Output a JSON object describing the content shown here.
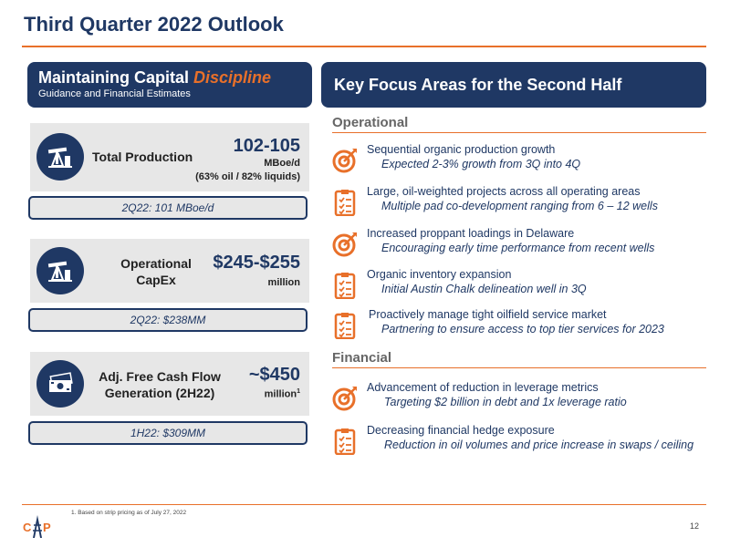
{
  "title": "Third Quarter 2022 Outlook",
  "left": {
    "header_main": "Maintaining Capital ",
    "header_accent": "Discipline",
    "header_sub": "Guidance and Financial Estimates",
    "cards": [
      {
        "icon": "oil-pump-icon",
        "label": "Total Production",
        "value": "102-105",
        "unit": "MBoe/d",
        "sub": "(63% oil / 82% liquids)",
        "pill": "2Q22: 101 MBoe/d"
      },
      {
        "icon": "oil-pump-icon",
        "label_line1": "Operational",
        "label_line2": "CapEx",
        "value": "$245-$255",
        "unit": "million",
        "pill": "2Q22: $238MM"
      },
      {
        "icon": "cash-icon",
        "label_line1": "Adj. Free Cash Flow",
        "label_line2": "Generation (2H22)",
        "value": "~$450",
        "unit": "million",
        "unit_sup": "1",
        "pill": "1H22: $309MM"
      }
    ]
  },
  "right": {
    "header": "Key Focus Areas for the Second Half",
    "operational_title": "Operational",
    "operational": [
      {
        "icon": "target-icon",
        "head": "Sequential organic production growth",
        "desc": "Expected 2-3% growth from 3Q into 4Q"
      },
      {
        "icon": "checklist-icon",
        "head": "Large, oil-weighted projects across all operating areas",
        "desc": "Multiple pad co-development ranging from 6 – 12 wells"
      },
      {
        "icon": "target-icon",
        "head": "Increased proppant loadings in Delaware",
        "desc": "Encouraging early time performance from recent wells"
      },
      {
        "icon": "checklist-icon",
        "head": "Organic inventory expansion",
        "desc": "Initial Austin Chalk delineation well in 3Q"
      },
      {
        "icon": "checklist-icon",
        "head": "Proactively manage tight oilfield service market",
        "desc": "Partnering to ensure access to top tier services for 2023"
      }
    ],
    "financial_title": "Financial",
    "financial": [
      {
        "icon": "target-icon",
        "head": "Advancement of reduction in leverage metrics",
        "desc": "Targeting $2 billion in debt and 1x leverage ratio"
      },
      {
        "icon": "checklist-icon",
        "head": "Decreasing financial hedge exposure",
        "desc": "Reduction in oil volumes and price increase in swaps / ceiling"
      }
    ]
  },
  "footnote": "1.   Based on strip pricing as of July 27, 2022",
  "page_number": "12",
  "logo_text": "CAP",
  "colors": {
    "navy": "#1f3864",
    "orange": "#e8702a",
    "card_gray": "#e7e7e7"
  }
}
